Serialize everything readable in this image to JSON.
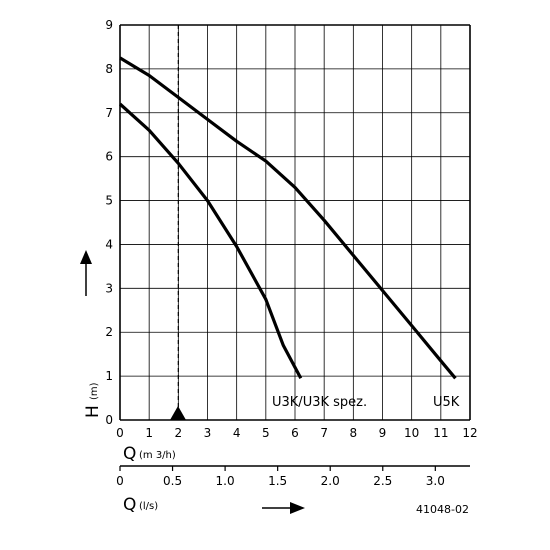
{
  "chart_data": {
    "type": "line",
    "x_axis": {
      "min": 0,
      "max": 12,
      "ticks": [
        0,
        1,
        2,
        3,
        4,
        5,
        6,
        7,
        8,
        9,
        10,
        11,
        12
      ],
      "label_main": "Q",
      "label_unit": "(m 3/h)"
    },
    "x2_axis": {
      "min": 0,
      "max": 3.33,
      "ticks": [
        "0",
        "0.5",
        "1.0",
        "1.5",
        "2.0",
        "2.5",
        "3.0"
      ],
      "tick_values": [
        0,
        0.5,
        1.0,
        1.5,
        2.0,
        2.5,
        3.0
      ],
      "label_main": "Q",
      "label_unit": "(l/s)"
    },
    "y_axis": {
      "min": 0,
      "max": 9,
      "ticks": [
        0,
        1,
        2,
        3,
        4,
        5,
        6,
        7,
        8,
        9
      ],
      "label_main": "H",
      "label_unit": "(m)"
    },
    "grid": true,
    "reference_line": {
      "x": 2
    },
    "series": [
      {
        "name": "U3K/U3K spez.",
        "points": [
          [
            0,
            7.2
          ],
          [
            1,
            6.6
          ],
          [
            2,
            5.85
          ],
          [
            3,
            5.0
          ],
          [
            4,
            3.95
          ],
          [
            5,
            2.75
          ],
          [
            5.6,
            1.7
          ],
          [
            6.2,
            0.95
          ]
        ]
      },
      {
        "name": "U5K",
        "points": [
          [
            0,
            8.25
          ],
          [
            1,
            7.85
          ],
          [
            2,
            7.35
          ],
          [
            3,
            6.85
          ],
          [
            4,
            6.35
          ],
          [
            5,
            5.9
          ],
          [
            6,
            5.3
          ],
          [
            7,
            4.55
          ],
          [
            8,
            3.75
          ],
          [
            9,
            2.95
          ],
          [
            10,
            2.15
          ],
          [
            11,
            1.35
          ],
          [
            11.5,
            0.95
          ]
        ]
      }
    ],
    "annotation": "41048-02"
  }
}
